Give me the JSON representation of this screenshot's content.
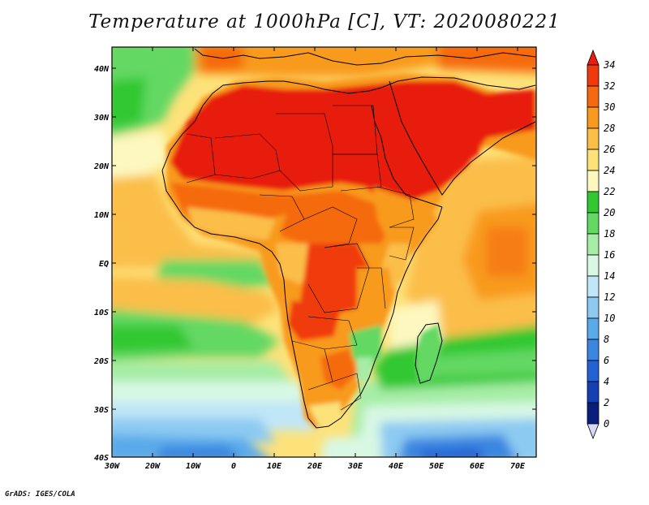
{
  "title": "Temperature at 1000hPa [C], VT: 2020080221",
  "credit": "GrADS: IGES/COLA",
  "lat_labels": [
    "40N",
    "30N",
    "20N",
    "10N",
    "EQ",
    "10S",
    "20S",
    "30S",
    "40S"
  ],
  "lon_labels": [
    "30W",
    "20W",
    "10W",
    "0",
    "10E",
    "20E",
    "30E",
    "40E",
    "50E",
    "60E",
    "70E"
  ],
  "colorbar": {
    "labels": [
      "34",
      "32",
      "30",
      "28",
      "26",
      "24",
      "22",
      "20",
      "18",
      "16",
      "14",
      "12",
      "10",
      "8",
      "6",
      "4",
      "2",
      "0"
    ],
    "colors": [
      "#e81e0e",
      "#f03a0e",
      "#f56a10",
      "#f89a1e",
      "#fbbe48",
      "#fde27a",
      "#fdf8c0",
      "#32c832",
      "#64d864",
      "#a6eda6",
      "#d8f8e4",
      "#c0e6f8",
      "#8ccaf2",
      "#5aaaea",
      "#3a86e0",
      "#2262d4",
      "#1440b4",
      "#0a1e7e",
      "#d8d8f8"
    ]
  }
}
